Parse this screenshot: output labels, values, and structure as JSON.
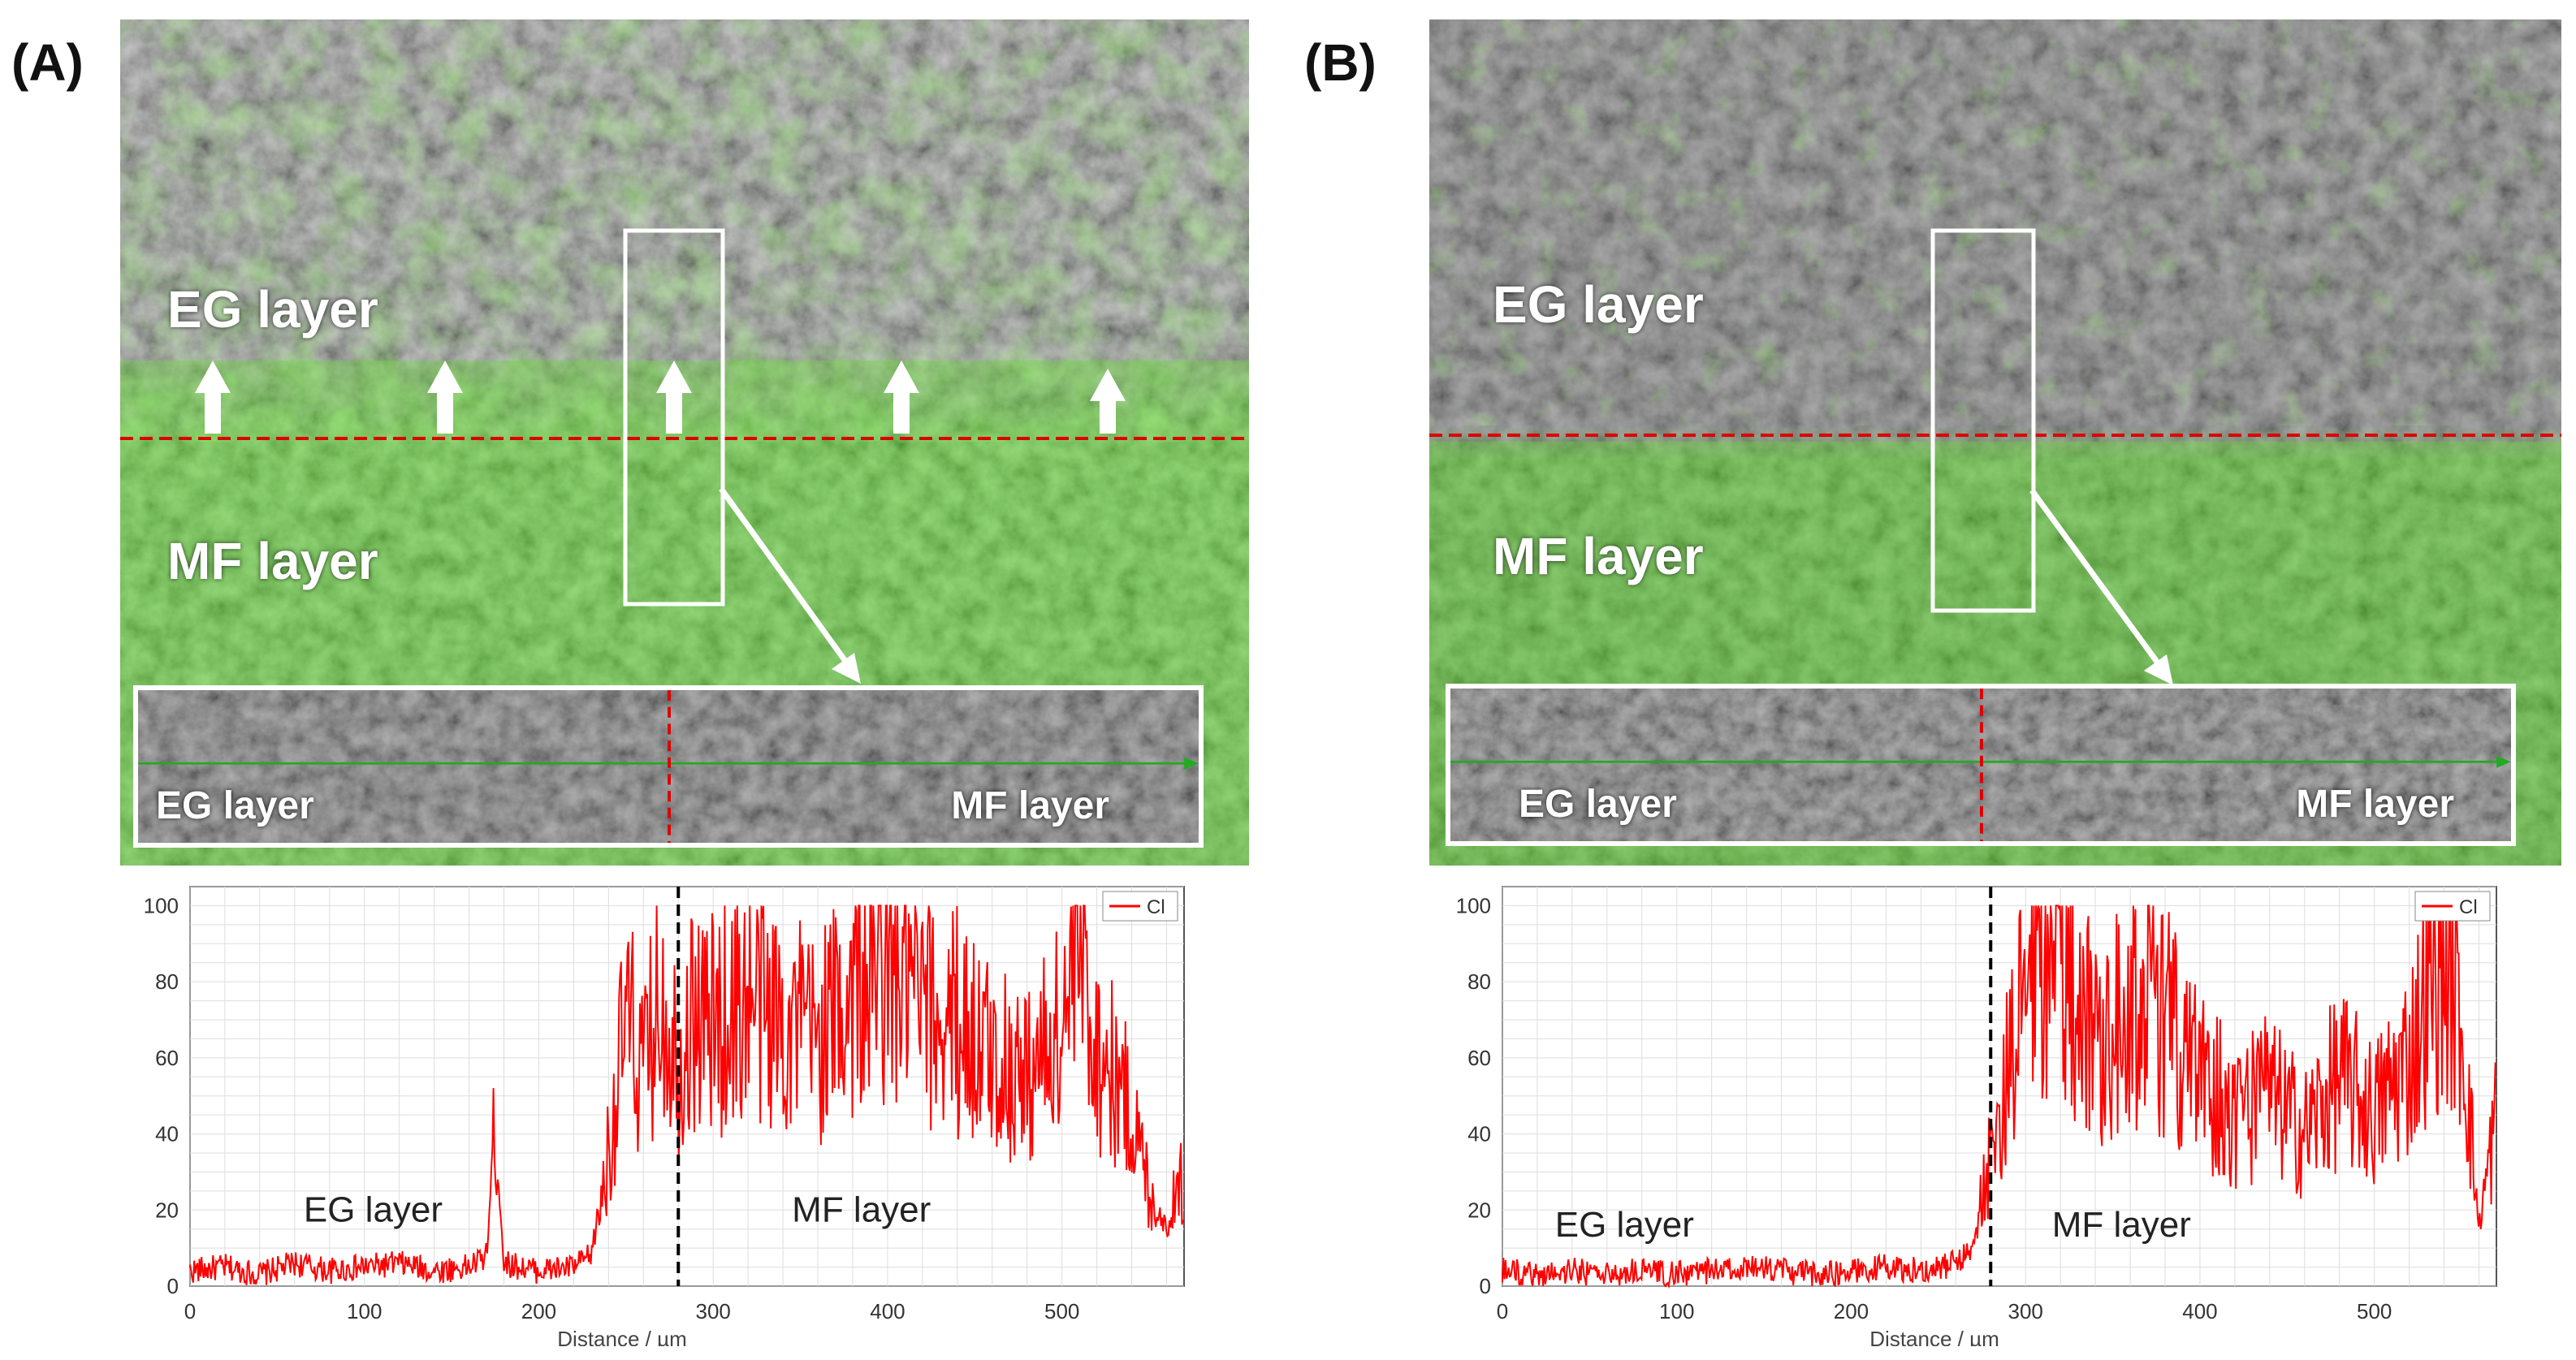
{
  "panels": [
    {
      "id": "A",
      "label": "(A)",
      "eg_label": "EG layer",
      "mf_label": "MF layer",
      "inset": {
        "eg_label": "EG layer",
        "mf_label": "MF layer"
      },
      "chart": {
        "eg_label": "EG layer",
        "mf_label": "MF layer"
      }
    },
    {
      "id": "B",
      "label": "(B)",
      "eg_label": "EG layer",
      "mf_label": "MF layer",
      "inset": {
        "eg_label": "EG layer",
        "mf_label": "MF layer"
      },
      "chart": {
        "eg_label": "EG layer",
        "mf_label": "MF layer"
      }
    }
  ],
  "colors": {
    "signal": "#ff0000",
    "boundary_dashed": "#dd0000",
    "chlorine_green": "#66dd33",
    "sem_gray": "#6f6f6f"
  },
  "chart_data": [
    {
      "type": "line",
      "panel": "A",
      "xlabel": "Distance / µm",
      "ylabel": "",
      "xlim": [
        0,
        570
      ],
      "ylim": [
        0,
        105
      ],
      "xticks": [
        0,
        100,
        200,
        300,
        400,
        500
      ],
      "yticks": [
        0,
        20,
        40,
        60,
        80,
        100
      ],
      "legend": "top-right",
      "grid": true,
      "boundary_x": 280,
      "series": [
        {
          "name": "Cl",
          "color": "#ff0000",
          "x": [
            0,
            20,
            40,
            60,
            80,
            100,
            120,
            140,
            160,
            170,
            175,
            180,
            190,
            200,
            220,
            230,
            240,
            250,
            260,
            270,
            280,
            290,
            300,
            320,
            340,
            360,
            380,
            400,
            420,
            440,
            460,
            480,
            500,
            510,
            520,
            530,
            540,
            550,
            560,
            570
          ],
          "y": [
            4,
            5,
            3,
            6,
            4,
            5,
            6,
            4,
            5,
            8,
            44,
            6,
            5,
            4,
            5,
            8,
            35,
            70,
            55,
            78,
            60,
            72,
            68,
            75,
            70,
            65,
            78,
            85,
            72,
            70,
            60,
            55,
            68,
            90,
            62,
            55,
            45,
            25,
            15,
            30
          ]
        }
      ]
    },
    {
      "type": "line",
      "panel": "B",
      "xlabel": "Distance / µm",
      "ylabel": "",
      "xlim": [
        0,
        570
      ],
      "ylim": [
        0,
        105
      ],
      "xticks": [
        0,
        100,
        200,
        300,
        400,
        500
      ],
      "yticks": [
        0,
        20,
        40,
        60,
        80,
        100
      ],
      "legend": "top-right",
      "grid": true,
      "boundary_x": 280,
      "series": [
        {
          "name": "Cl",
          "color": "#ff0000",
          "x": [
            0,
            20,
            40,
            60,
            80,
            100,
            120,
            140,
            160,
            180,
            200,
            220,
            240,
            260,
            270,
            280,
            290,
            300,
            310,
            320,
            340,
            360,
            380,
            400,
            420,
            440,
            460,
            480,
            500,
            520,
            530,
            540,
            550,
            560,
            570
          ],
          "y": [
            4,
            3,
            4,
            3,
            4,
            3,
            4,
            5,
            4,
            3,
            4,
            5,
            4,
            6,
            10,
            35,
            55,
            75,
            88,
            85,
            65,
            75,
            70,
            55,
            45,
            50,
            40,
            55,
            45,
            60,
            75,
            85,
            70,
            15,
            45
          ]
        }
      ]
    }
  ]
}
